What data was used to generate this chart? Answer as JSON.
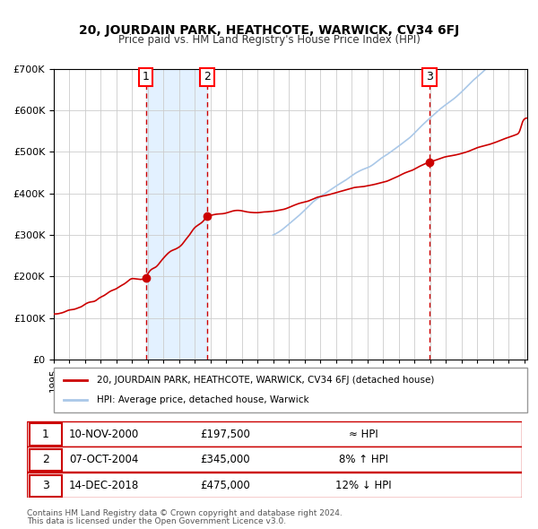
{
  "title": "20, JOURDAIN PARK, HEATHCOTE, WARWICK, CV34 6FJ",
  "subtitle": "Price paid vs. HM Land Registry's House Price Index (HPI)",
  "legend_line1": "20, JOURDAIN PARK, HEATHCOTE, WARWICK, CV34 6FJ (detached house)",
  "legend_line2": "HPI: Average price, detached house, Warwick",
  "red_color": "#cc0000",
  "blue_color": "#aac8e8",
  "background_color": "#ffffff",
  "plot_bg_color": "#ffffff",
  "grid_color": "#cccccc",
  "shaded_region_color": "#ddeeff",
  "transactions": [
    {
      "num": 1,
      "date": "10-NOV-2000",
      "price": 197500,
      "year": 2000.87,
      "relation": "≈ HPI"
    },
    {
      "num": 2,
      "date": "07-OCT-2004",
      "price": 345000,
      "year": 2004.77,
      "relation": "8% ↑ HPI"
    },
    {
      "num": 3,
      "date": "14-DEC-2018",
      "price": 475000,
      "year": 2018.96,
      "relation": "12% ↓ HPI"
    }
  ],
  "footnote1": "Contains HM Land Registry data © Crown copyright and database right 2024.",
  "footnote2": "This data is licensed under the Open Government Licence v3.0.",
  "ylim": [
    0,
    700000
  ],
  "xlim_start": 1995.0,
  "xlim_end": 2025.2
}
